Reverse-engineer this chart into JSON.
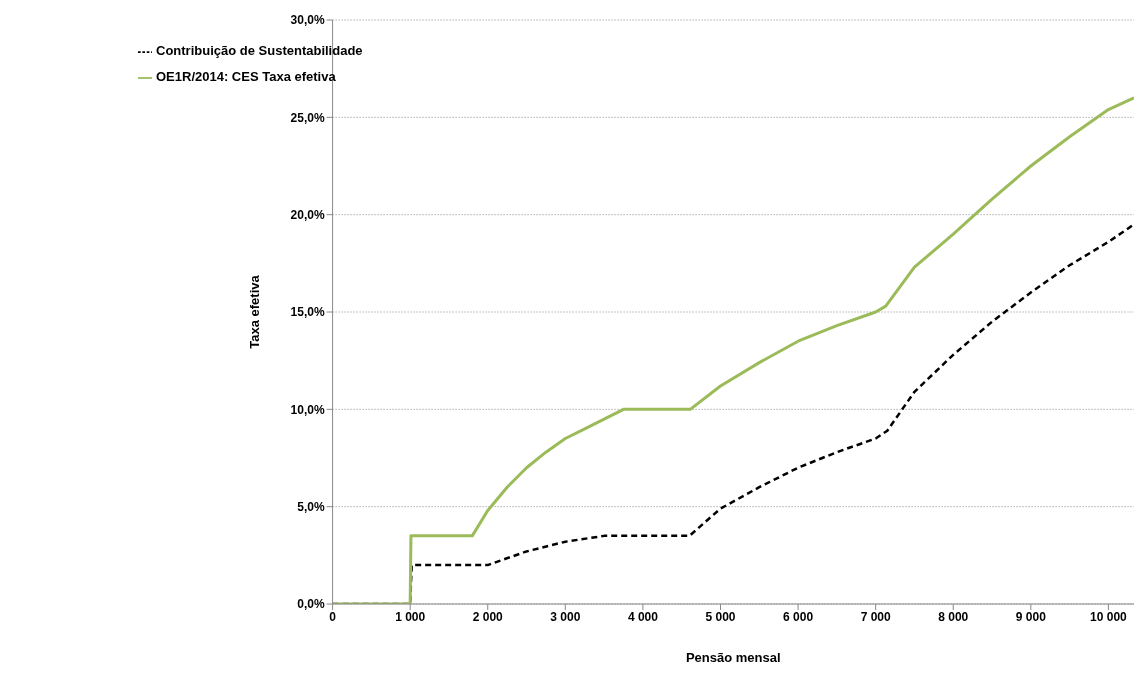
{
  "chart_data": {
    "type": "line",
    "xlabel": "Pensão mensal",
    "ylabel": "Taxa efetiva",
    "xlim": [
      0,
      10330
    ],
    "ylim": [
      0,
      30
    ],
    "xticks": [
      0,
      {
        "value": 1000,
        "label": "1 000"
      },
      {
        "value": 2000,
        "label": "2 000"
      },
      {
        "value": 3000,
        "label": "3 000"
      },
      {
        "value": 4000,
        "label": "4 000"
      },
      {
        "value": 5000,
        "label": "5 000"
      },
      {
        "value": 6000,
        "label": "6 000"
      },
      {
        "value": 7000,
        "label": "7 000"
      },
      {
        "value": 8000,
        "label": "8 000"
      },
      {
        "value": 9000,
        "label": "9 000"
      },
      {
        "value": 10000,
        "label": "10 000"
      }
    ],
    "yticks": [
      {
        "value": 0,
        "label": "0,0%"
      },
      {
        "value": 5,
        "label": "5,0%"
      },
      {
        "value": 10,
        "label": "10,0%"
      },
      {
        "value": 15,
        "label": "15,0%"
      },
      {
        "value": 20,
        "label": "20,0%"
      },
      {
        "value": 25,
        "label": "25,0%"
      },
      {
        "value": 30,
        "label": "30,0%"
      }
    ],
    "grid": "y",
    "legend": "top left",
    "marker": "none",
    "series": [
      {
        "name": "Contribuição de Sustentabilidade",
        "color": "#000000",
        "line_style": "dashed",
        "x": [
          0,
          1000,
          1020,
          2000,
          2500,
          3000,
          3500,
          4600,
          5000,
          5500,
          6000,
          6500,
          7000,
          7150,
          7500,
          8000,
          8500,
          9000,
          9500,
          10000,
          10330
        ],
        "values": [
          0,
          0,
          2.0,
          2.0,
          2.7,
          3.2,
          3.5,
          3.5,
          4.9,
          6.0,
          7.0,
          7.8,
          8.5,
          8.9,
          10.9,
          12.8,
          14.5,
          16.0,
          17.4,
          18.6,
          19.5
        ]
      },
      {
        "name": "OE1R/2014: CES Taxa  efetiva",
        "color": "#9bbb59",
        "line_style": "solid",
        "x": [
          0,
          1000,
          1010,
          1800,
          2000,
          2250,
          2500,
          2750,
          3000,
          3250,
          3500,
          3750,
          4610,
          5000,
          5500,
          6000,
          6500,
          7000,
          7130,
          7500,
          8000,
          8500,
          9000,
          9500,
          10000,
          10330
        ],
        "values": [
          0,
          0,
          3.5,
          3.5,
          4.8,
          6.0,
          7.0,
          7.8,
          8.5,
          9.0,
          9.5,
          10,
          10,
          11.2,
          12.4,
          13.5,
          14.3,
          15.0,
          15.3,
          17.3,
          19.0,
          20.8,
          22.5,
          24.0,
          25.4,
          26.0
        ]
      }
    ]
  }
}
